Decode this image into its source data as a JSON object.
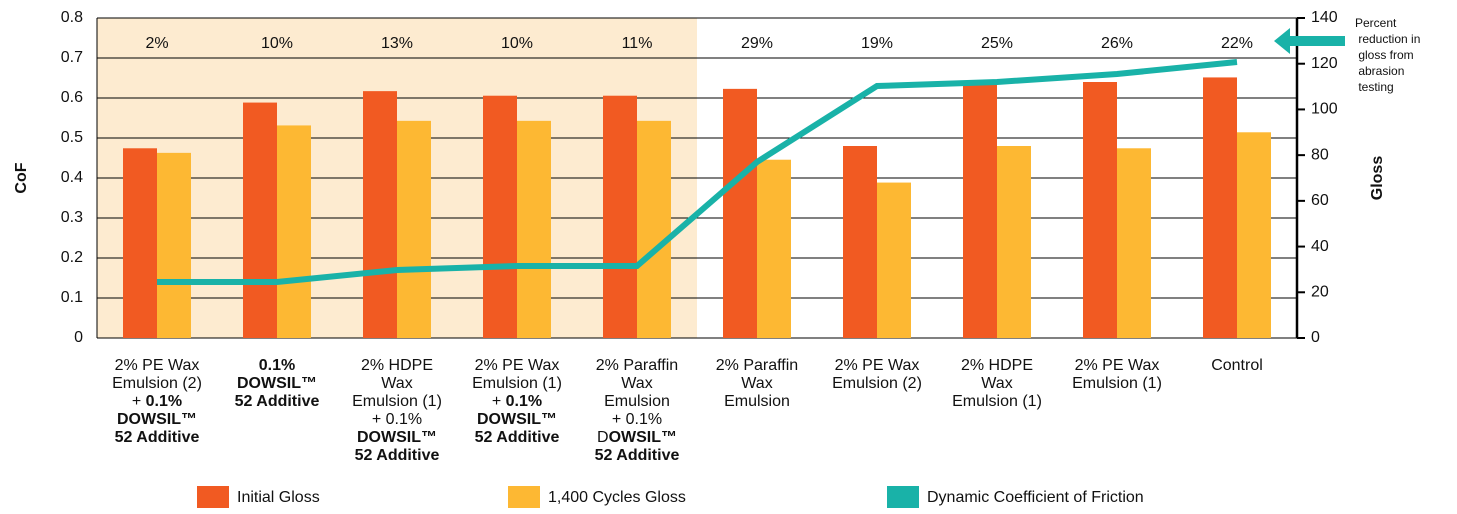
{
  "chart_data": {
    "type": "bar",
    "ylabel": "CoF",
    "y2label": "Gloss",
    "categories": [
      "2% PE Wax\nEmulsion (2)\n+ 0.1%\nDOWSIL™\n52 Additive",
      "0.1%\nDOWSIL™\n52 Additive",
      "2% HDPE\nWax\nEmulsion (1)\n+ 0.1%\nDOWSIL™\n52 Additive",
      "2% PE Wax\nEmulsion (1)\n+ 0.1%\nDOWSIL™\n52 Additive",
      "2% Paraffin\nWax\nEmulsion\n+ 0.1%\nDOWSIL™\n52 Additive",
      "2% Paraffin\nWax\nEmulsion",
      "2% PE Wax\nEmulsion (2)",
      "2% HDPE\nWax\nEmulsion (1)",
      "2% PE Wax\nEmulsion (1)",
      "Control"
    ],
    "category_bold_from": [
      25,
      0,
      32,
      25,
      33,
      null,
      null,
      null,
      null,
      null
    ],
    "highlight": [
      0,
      4
    ],
    "series": [
      {
        "name": "Initial Gloss",
        "type": "bar",
        "axis": "y2",
        "color": "#f15a22",
        "values": [
          83,
          103,
          108,
          106,
          106,
          109,
          84,
          111,
          112,
          114
        ]
      },
      {
        "name": "1,400 Cycles Gloss",
        "type": "bar",
        "axis": "y2",
        "color": "#fdb833",
        "values": [
          81,
          93,
          95,
          95,
          95,
          78,
          68,
          84,
          83,
          90
        ]
      },
      {
        "name": "Dynamic Coefficient of Friction",
        "type": "line",
        "color": "#19b2a8",
        "values": [
          0.14,
          0.14,
          0.17,
          0.18,
          0.18,
          0.44,
          0.63,
          0.64,
          0.66,
          0.69
        ]
      }
    ],
    "annotations": [
      "2%",
      "10%",
      "13%",
      "10%",
      "11%",
      "29%",
      "19%",
      "25%",
      "26%",
      "22%"
    ],
    "note": "Percent reduction in gloss from abrasion testing",
    "ylim": [
      0,
      0.8
    ],
    "yticks": [
      0,
      0.1,
      0.2,
      0.3,
      0.4,
      0.5,
      0.6,
      0.7,
      0.8
    ],
    "y2lim": [
      0,
      140
    ],
    "y2ticks": [
      0,
      20,
      40,
      60,
      80,
      100,
      120,
      140
    ],
    "grid": true
  }
}
